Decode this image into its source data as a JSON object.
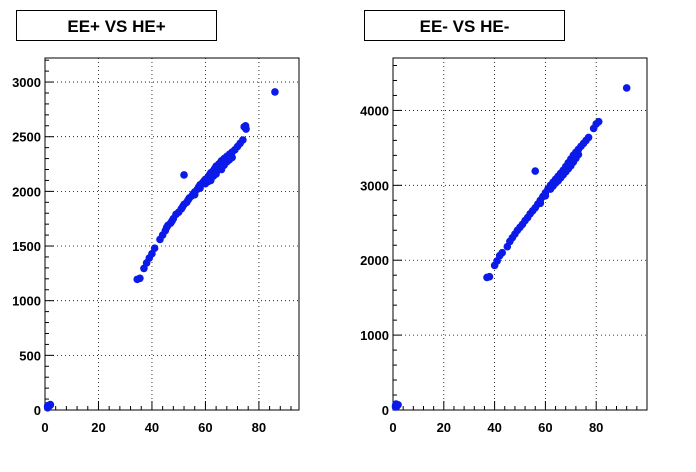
{
  "colors": {
    "marker": "#0b1ae8",
    "grid": "#000000",
    "frame": "#000000",
    "background": "#ffffff"
  },
  "chart_data": [
    {
      "type": "scatter",
      "title": "EE+ VS HE+",
      "xlabel": "",
      "ylabel": "",
      "xlim": [
        0,
        95
      ],
      "ylim": [
        0,
        3220
      ],
      "xticks": [
        0,
        20,
        40,
        60,
        80
      ],
      "yticks": [
        0,
        500,
        1000,
        1500,
        2000,
        2500,
        3000
      ],
      "grid": true,
      "points": [
        [
          1,
          20
        ],
        [
          1,
          30
        ],
        [
          1,
          40
        ],
        [
          1.5,
          35
        ],
        [
          2,
          45
        ],
        [
          2,
          50
        ],
        [
          34.5,
          1195
        ],
        [
          35.5,
          1205
        ],
        [
          37,
          1295
        ],
        [
          38,
          1345
        ],
        [
          39,
          1390
        ],
        [
          40,
          1430
        ],
        [
          41,
          1480
        ],
        [
          43,
          1560
        ],
        [
          44,
          1600
        ],
        [
          45,
          1640
        ],
        [
          45.5,
          1670
        ],
        [
          46,
          1690
        ],
        [
          47,
          1710
        ],
        [
          47.5,
          1730
        ],
        [
          48,
          1750
        ],
        [
          49,
          1790
        ],
        [
          50,
          1810
        ],
        [
          51,
          1840
        ],
        [
          51.5,
          1860
        ],
        [
          52,
          1880
        ],
        [
          53,
          1900
        ],
        [
          53.5,
          1920
        ],
        [
          54,
          1940
        ],
        [
          55,
          1960
        ],
        [
          55.5,
          1980
        ],
        [
          56,
          1995
        ],
        [
          57,
          2020
        ],
        [
          57.5,
          2040
        ],
        [
          58,
          2060
        ],
        [
          59,
          2080
        ],
        [
          59.5,
          2095
        ],
        [
          60,
          2110
        ],
        [
          61,
          2130
        ],
        [
          61.5,
          2150
        ],
        [
          62,
          2170
        ],
        [
          63,
          2190
        ],
        [
          63.5,
          2210
        ],
        [
          64,
          2230
        ],
        [
          65,
          2250
        ],
        [
          65.5,
          2260
        ],
        [
          66,
          2280
        ],
        [
          67,
          2300
        ],
        [
          68,
          2320
        ],
        [
          69,
          2340
        ],
        [
          70,
          2360
        ],
        [
          71,
          2380
        ],
        [
          72,
          2410
        ],
        [
          73,
          2440
        ],
        [
          74,
          2470
        ],
        [
          75,
          2580
        ],
        [
          75,
          2600
        ],
        [
          74.5,
          2590
        ],
        [
          75.2,
          2570
        ],
        [
          62,
          2100
        ],
        [
          62,
          2130
        ],
        [
          63,
          2140
        ],
        [
          64,
          2160
        ],
        [
          66,
          2200
        ],
        [
          66,
          2220
        ],
        [
          67,
          2240
        ],
        [
          68,
          2270
        ],
        [
          69,
          2290
        ],
        [
          70,
          2310
        ],
        [
          60,
          2070
        ],
        [
          61,
          2090
        ],
        [
          58,
          2030
        ],
        [
          56,
          1970
        ],
        [
          52,
          2150
        ],
        [
          86,
          2910
        ]
      ]
    },
    {
      "type": "scatter",
      "title": "EE- VS HE-",
      "xlabel": "",
      "ylabel": "",
      "xlim": [
        0,
        100
      ],
      "ylim": [
        0,
        4700
      ],
      "xticks": [
        0,
        20,
        40,
        60,
        80
      ],
      "yticks": [
        0,
        1000,
        2000,
        3000,
        4000
      ],
      "grid": true,
      "points": [
        [
          1,
          40
        ],
        [
          1,
          60
        ],
        [
          1.5,
          50
        ],
        [
          2,
          70
        ],
        [
          1.2,
          80
        ],
        [
          37,
          1770
        ],
        [
          38,
          1780
        ],
        [
          40,
          1930
        ],
        [
          41,
          1990
        ],
        [
          42,
          2060
        ],
        [
          43,
          2100
        ],
        [
          45,
          2180
        ],
        [
          46,
          2250
        ],
        [
          47,
          2300
        ],
        [
          48,
          2350
        ],
        [
          49,
          2400
        ],
        [
          50,
          2440
        ],
        [
          51,
          2480
        ],
        [
          52,
          2530
        ],
        [
          53,
          2570
        ],
        [
          54,
          2620
        ],
        [
          55,
          2660
        ],
        [
          56,
          2700
        ],
        [
          57,
          2750
        ],
        [
          58,
          2800
        ],
        [
          59,
          2850
        ],
        [
          60,
          2900
        ],
        [
          61,
          2950
        ],
        [
          62,
          3000
        ],
        [
          63,
          3040
        ],
        [
          64,
          3080
        ],
        [
          65,
          3120
        ],
        [
          66,
          3160
        ],
        [
          67,
          3200
        ],
        [
          68,
          3250
        ],
        [
          69,
          3300
        ],
        [
          70,
          3350
        ],
        [
          71,
          3400
        ],
        [
          72,
          3440
        ],
        [
          73,
          3480
        ],
        [
          74,
          3520
        ],
        [
          75,
          3560
        ],
        [
          76,
          3600
        ],
        [
          77,
          3640
        ],
        [
          79,
          3760
        ],
        [
          80,
          3820
        ],
        [
          81,
          3850
        ],
        [
          62,
          2950
        ],
        [
          63,
          2990
        ],
        [
          64,
          3030
        ],
        [
          65,
          3060
        ],
        [
          66,
          3100
        ],
        [
          67,
          3140
        ],
        [
          68,
          3180
        ],
        [
          69,
          3220
        ],
        [
          70,
          3260
        ],
        [
          71,
          3310
        ],
        [
          72,
          3360
        ],
        [
          73,
          3410
        ],
        [
          60,
          2860
        ],
        [
          58,
          2760
        ],
        [
          56,
          3190
        ],
        [
          92,
          4300
        ]
      ]
    }
  ]
}
